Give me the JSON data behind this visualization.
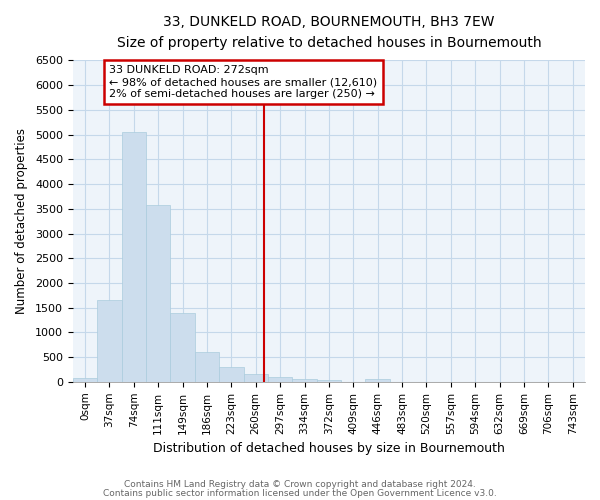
{
  "title": "33, DUNKELD ROAD, BOURNEMOUTH, BH3 7EW",
  "subtitle": "Size of property relative to detached houses in Bournemouth",
  "xlabel": "Distribution of detached houses by size in Bournemouth",
  "ylabel": "Number of detached properties",
  "bin_labels": [
    "0sqm",
    "37sqm",
    "74sqm",
    "111sqm",
    "149sqm",
    "186sqm",
    "223sqm",
    "260sqm",
    "297sqm",
    "334sqm",
    "372sqm",
    "409sqm",
    "446sqm",
    "483sqm",
    "520sqm",
    "557sqm",
    "594sqm",
    "632sqm",
    "669sqm",
    "706sqm",
    "743sqm"
  ],
  "bar_heights": [
    75,
    1650,
    5060,
    3580,
    1400,
    610,
    300,
    150,
    105,
    55,
    30,
    0,
    55,
    0,
    0,
    0,
    0,
    0,
    0,
    0,
    0
  ],
  "bar_color": "#ccdded",
  "bar_edge_color": "#aaccdd",
  "vline_color": "#cc0000",
  "annotation_text": "33 DUNKELD ROAD: 272sqm\n← 98% of detached houses are smaller (12,610)\n2% of semi-detached houses are larger (250) →",
  "annotation_box_color": "#ffffff",
  "annotation_box_edge_color": "#cc0000",
  "ylim": [
    0,
    6500
  ],
  "yticks": [
    0,
    500,
    1000,
    1500,
    2000,
    2500,
    3000,
    3500,
    4000,
    4500,
    5000,
    5500,
    6000,
    6500
  ],
  "footer1": "Contains HM Land Registry data © Crown copyright and database right 2024.",
  "footer2": "Contains public sector information licensed under the Open Government Licence v3.0.",
  "background_color": "#ffffff",
  "plot_bg_color": "#eef4fa",
  "grid_color": "#c5d8ea"
}
